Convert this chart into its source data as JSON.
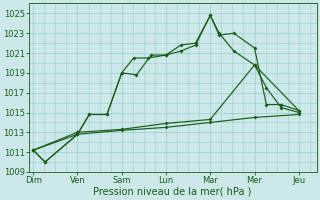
{
  "xlabel": "Pression niveau de la mer( hPa )",
  "bg_color": "#cce8e8",
  "grid_color": "#99cccc",
  "line_color": "#1a5c1a",
  "xtick_labels": [
    "Dim",
    "Ven",
    "Sam",
    "Lun",
    "Mar",
    "Mer",
    "Jeu"
  ],
  "xtick_positions": [
    0,
    1.5,
    3.0,
    4.5,
    6.0,
    7.5,
    9.0
  ],
  "ylim": [
    1009,
    1026
  ],
  "yticks": [
    1009,
    1011,
    1013,
    1015,
    1017,
    1019,
    1021,
    1023,
    1025
  ],
  "xlim": [
    -0.15,
    9.6
  ],
  "line1_x": [
    0,
    0.4,
    1.5,
    1.9,
    2.5,
    3.0,
    3.5,
    4.0,
    4.5,
    5.0,
    5.5,
    6.0,
    6.3,
    6.8,
    7.5,
    7.9,
    8.4,
    9.0
  ],
  "line1_y": [
    1011.2,
    1010.0,
    1012.8,
    1014.8,
    1014.8,
    1019.0,
    1018.8,
    1020.8,
    1020.8,
    1021.2,
    1021.8,
    1024.8,
    1023.0,
    1021.2,
    1019.8,
    1017.5,
    1015.5,
    1015.0
  ],
  "line2_x": [
    0,
    0.4,
    1.5,
    1.9,
    2.5,
    3.0,
    3.4,
    3.9,
    4.5,
    5.0,
    5.5,
    6.0,
    6.3,
    6.8,
    7.5,
    7.9,
    8.4,
    9.0
  ],
  "line2_y": [
    1011.2,
    1010.0,
    1012.8,
    1014.8,
    1014.8,
    1019.0,
    1020.5,
    1020.5,
    1020.8,
    1021.8,
    1022.0,
    1024.8,
    1022.8,
    1023.0,
    1021.5,
    1015.8,
    1015.8,
    1015.2
  ],
  "line3_x": [
    0,
    1.5,
    3.0,
    4.5,
    6.0,
    7.5,
    9.0
  ],
  "line3_y": [
    1011.2,
    1012.8,
    1013.2,
    1013.5,
    1014.0,
    1014.5,
    1014.8
  ],
  "line4_x": [
    0,
    1.5,
    3.0,
    4.5,
    6.0,
    7.5,
    9.0
  ],
  "line4_y": [
    1011.2,
    1013.0,
    1013.3,
    1013.9,
    1014.3,
    1019.8,
    1015.2
  ]
}
